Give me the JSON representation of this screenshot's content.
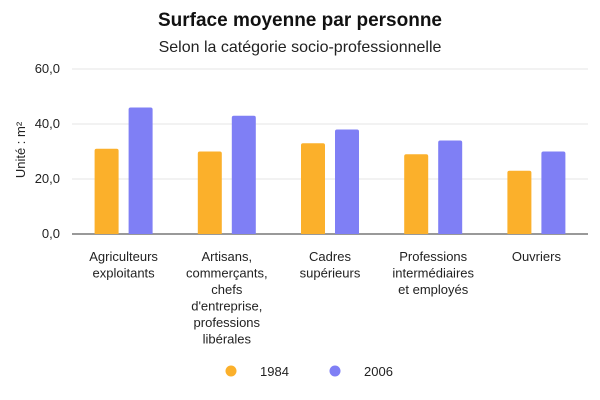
{
  "chart_data": {
    "type": "bar",
    "title": "Surface moyenne par personne",
    "subtitle": "Selon la catégorie socio-professionnelle",
    "xlabel": "",
    "ylabel": "Unité : m²",
    "ylim": [
      0,
      60
    ],
    "yticks": [
      {
        "value": 0,
        "label": "0,0"
      },
      {
        "value": 20,
        "label": "20,0"
      },
      {
        "value": 40,
        "label": "40,0"
      },
      {
        "value": 60,
        "label": "60,0"
      }
    ],
    "grid": true,
    "legend_position": "bottom",
    "categories": [
      [
        "Agriculteurs",
        "exploitants"
      ],
      [
        "Artisans,",
        "commerçants,",
        "chefs",
        "d'entreprise,",
        "professions",
        "libérales"
      ],
      [
        "Cadres",
        "supérieurs"
      ],
      [
        "Professions",
        "intermédiaires",
        "et employés"
      ],
      [
        "Ouvriers"
      ]
    ],
    "series": [
      {
        "name": "1984",
        "color": "#FBB02B",
        "values": [
          31,
          30,
          33,
          29,
          23
        ]
      },
      {
        "name": "2006",
        "color": "#7F7FF5",
        "values": [
          46,
          43,
          38,
          34,
          30
        ]
      }
    ]
  }
}
